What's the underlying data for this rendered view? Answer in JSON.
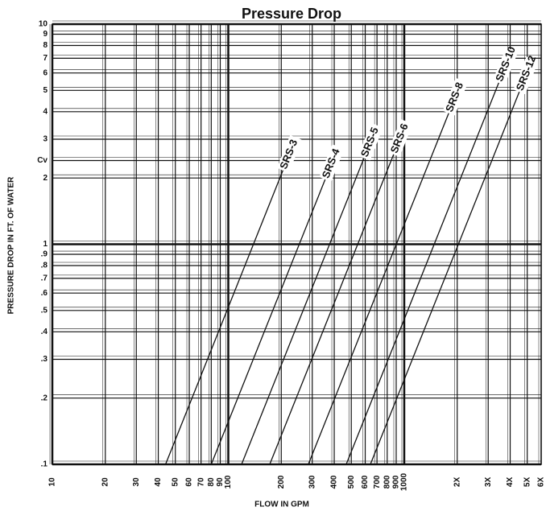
{
  "chart_data": {
    "type": "line",
    "title": "Pressure Drop",
    "x_label": "FLOW IN GPM",
    "y_label": "PRESSURE DROP IN FT. OF WATER",
    "log_x": true,
    "log_y": true,
    "grid": true,
    "xlim": [
      10,
      6000
    ],
    "ylim": [
      0.1,
      10
    ],
    "xticks": [
      10,
      20,
      30,
      40,
      50,
      60,
      70,
      80,
      90,
      100,
      200,
      300,
      400,
      500,
      600,
      700,
      800,
      900,
      1000,
      {
        "value": 2000,
        "label": "2X"
      },
      {
        "value": 3000,
        "label": "3X"
      },
      {
        "value": 4000,
        "label": "4X"
      },
      {
        "value": 5000,
        "label": "5X"
      },
      {
        "value": 6000,
        "label": "6X"
      }
    ],
    "yticks": [
      {
        "value": 0.1,
        "label": ".1"
      },
      {
        "value": 0.2,
        "label": ".2"
      },
      {
        "value": 0.3,
        "label": ".3"
      },
      {
        "value": 0.4,
        "label": ".4"
      },
      {
        "value": 0.5,
        "label": ".5"
      },
      {
        "value": 0.6,
        "label": ".6"
      },
      {
        "value": 0.7,
        "label": ".7"
      },
      {
        "value": 0.8,
        "label": ".8"
      },
      {
        "value": 0.9,
        "label": ".9"
      },
      1,
      2,
      {
        "value": 2.4,
        "label": "Cv"
      },
      3,
      4,
      5,
      6,
      7,
      8,
      9,
      10
    ],
    "series": [
      {
        "name": "SRS-3",
        "color": "#111111",
        "x": [
          44,
          206
        ],
        "values": [
          0.1,
          2.2
        ]
      },
      {
        "name": "SRS-4",
        "color": "#111111",
        "x": [
          80,
          358
        ],
        "values": [
          0.1,
          2.0
        ]
      },
      {
        "name": "SRS-5",
        "color": "#111111",
        "x": [
          119,
          595
        ],
        "values": [
          0.1,
          2.5
        ]
      },
      {
        "name": "SRS-6",
        "color": "#111111",
        "x": [
          172,
          877
        ],
        "values": [
          0.1,
          2.6
        ]
      },
      {
        "name": "SRS-8",
        "color": "#111111",
        "x": [
          285,
          1803
        ],
        "values": [
          0.1,
          4
        ]
      },
      {
        "name": "SRS-10",
        "color": "#111111",
        "x": [
          468,
          3471
        ],
        "values": [
          0.1,
          5.5
        ]
      },
      {
        "name": "SRS-12",
        "color": "#111111",
        "x": [
          642,
          4540
        ],
        "values": [
          0.1,
          5
        ]
      }
    ]
  }
}
